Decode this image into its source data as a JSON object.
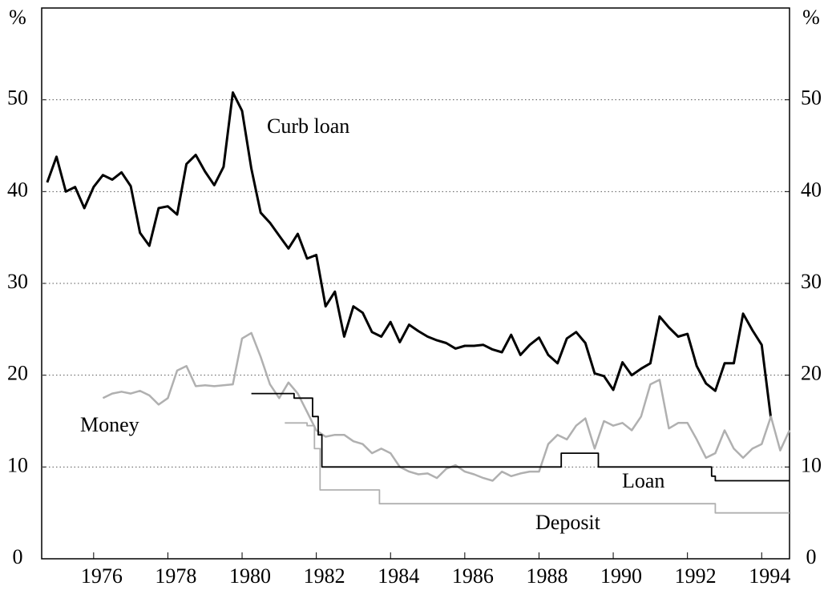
{
  "chart_data": {
    "type": "line",
    "ylabel": "%",
    "y2label": "%",
    "xlim": [
      1974.6,
      1994.75
    ],
    "xticks": [
      1976,
      1978,
      1980,
      1982,
      1984,
      1986,
      1988,
      1990,
      1992,
      1994
    ],
    "ylim": [
      0,
      60
    ],
    "yticks": [
      0,
      10,
      20,
      30,
      40,
      50
    ],
    "y2lim": [
      0,
      60
    ],
    "y2ticks": [
      0,
      10,
      20,
      30,
      40,
      50
    ],
    "grid": true,
    "annotations": [
      "Curb loan",
      "Money",
      "Loan",
      "Deposit"
    ],
    "series": [
      {
        "name": "Curb loan",
        "color": "#000000",
        "x": [
          1974.75,
          1975,
          1975.25,
          1975.5,
          1975.75,
          1976,
          1976.25,
          1976.5,
          1976.75,
          1977,
          1977.25,
          1977.5,
          1977.75,
          1978,
          1978.25,
          1978.5,
          1978.75,
          1979,
          1979.25,
          1979.5,
          1979.75,
          1980,
          1980.25,
          1980.5,
          1980.75,
          1981,
          1981.25,
          1981.5,
          1981.75,
          1982,
          1982.25,
          1982.5,
          1982.75,
          1983,
          1983.25,
          1983.5,
          1983.75,
          1984,
          1984.25,
          1984.5,
          1984.75,
          1985,
          1985.25,
          1985.5,
          1985.75,
          1986,
          1986.25,
          1986.5,
          1986.75,
          1987,
          1987.25,
          1987.5,
          1987.75,
          1988,
          1988.25,
          1988.5,
          1988.75,
          1989,
          1989.25,
          1989.5,
          1989.75,
          1990,
          1990.25,
          1990.5,
          1990.75,
          1991,
          1991.25,
          1991.5,
          1991.75,
          1992,
          1992.25,
          1992.5,
          1992.75,
          1993,
          1993.25,
          1993.5,
          1993.75,
          1994,
          1994.25
        ],
        "values": [
          41,
          43.8,
          40,
          40.5,
          38.2,
          40.5,
          41.8,
          41.3,
          42.1,
          40.6,
          35.5,
          34.1,
          38.2,
          38.4,
          37.5,
          43,
          44,
          42.2,
          40.7,
          42.7,
          50.8,
          48.8,
          42.5,
          37.7,
          36.6,
          35.2,
          33.8,
          35.4,
          32.7,
          33.1,
          27.5,
          29.1,
          24.2,
          27.5,
          26.8,
          24.7,
          24.2,
          25.8,
          23.6,
          25.5,
          24.8,
          24.2,
          23.8,
          23.5,
          22.9,
          23.2,
          23.2,
          23.3,
          22.8,
          22.5,
          24.4,
          22.2,
          23.3,
          24.1,
          22.2,
          21.3,
          24,
          24.7,
          23.5,
          20.2,
          19.9,
          18.4,
          21.4,
          20,
          20.7,
          21.3,
          26.4,
          25.2,
          24.2,
          24.5,
          21,
          19.1,
          18.3,
          21.3,
          21.3,
          26.7,
          24.9,
          23.3,
          15.3
        ]
      },
      {
        "name": "Money",
        "color": "#b0b0b0",
        "x": [
          1976.25,
          1976.5,
          1976.75,
          1977,
          1977.25,
          1977.5,
          1977.75,
          1978,
          1978.25,
          1978.5,
          1978.75,
          1979,
          1979.25,
          1979.5,
          1979.75,
          1980,
          1980.25,
          1980.5,
          1980.75,
          1981,
          1981.25,
          1981.5,
          1981.75,
          1982,
          1982.25,
          1982.5,
          1982.75,
          1983,
          1983.25,
          1983.5,
          1983.75,
          1984,
          1984.25,
          1984.5,
          1984.75,
          1985,
          1985.25,
          1985.5,
          1985.75,
          1986,
          1986.25,
          1986.5,
          1986.75,
          1987,
          1987.25,
          1987.5,
          1987.75,
          1988,
          1988.25,
          1988.5,
          1988.75,
          1989,
          1989.25,
          1989.5,
          1989.75,
          1990,
          1990.25,
          1990.5,
          1990.75,
          1991,
          1991.25,
          1991.5,
          1991.75,
          1992,
          1992.25,
          1992.5,
          1992.75,
          1993,
          1993.25,
          1993.5,
          1993.75,
          1994,
          1994.25,
          1994.5,
          1994.75
        ],
        "values": [
          17.5,
          18,
          18.2,
          18,
          18.3,
          17.8,
          16.8,
          17.5,
          20.5,
          21,
          18.8,
          18.9,
          18.8,
          18.9,
          19,
          24,
          24.6,
          22,
          19,
          17.5,
          19.2,
          18,
          16,
          14,
          13.3,
          13.5,
          13.5,
          12.8,
          12.5,
          11.5,
          12,
          11.5,
          10,
          9.5,
          9.2,
          9.3,
          8.8,
          9.8,
          10.2,
          9.5,
          9.2,
          8.8,
          8.5,
          9.5,
          9,
          9.3,
          9.5,
          9.5,
          12.5,
          13.5,
          13,
          14.5,
          15.3,
          12,
          15,
          14.5,
          14.8,
          14,
          15.5,
          19,
          19.5,
          14.2,
          14.8,
          14.8,
          13,
          11,
          11.5,
          14,
          12,
          11,
          12,
          12.5,
          15.5,
          11.8,
          14
        ]
      },
      {
        "name": "Loan",
        "color": "#000000",
        "x": [
          1980.25,
          1981.4,
          1981.4,
          1981.9,
          1981.9,
          1982.05,
          1982.05,
          1982.15,
          1982.15,
          1988.6,
          1988.6,
          1989.6,
          1989.6,
          1992.65,
          1992.65,
          1992.75,
          1992.75,
          1994.75
        ],
        "values": [
          18,
          18,
          17.5,
          17.5,
          15.5,
          15.5,
          13.5,
          13.5,
          10,
          10,
          11.5,
          11.5,
          10,
          10,
          9,
          9,
          8.5,
          8.5
        ]
      },
      {
        "name": "Deposit",
        "color": "#b0b0b0",
        "x": [
          1981.15,
          1981.75,
          1981.75,
          1981.95,
          1981.95,
          1982.1,
          1982.1,
          1983.7,
          1983.7,
          1992.75,
          1992.75,
          1994.75
        ],
        "values": [
          14.8,
          14.8,
          14.5,
          14.5,
          12,
          12,
          7.5,
          7.5,
          6,
          6,
          5,
          5
        ]
      }
    ]
  }
}
